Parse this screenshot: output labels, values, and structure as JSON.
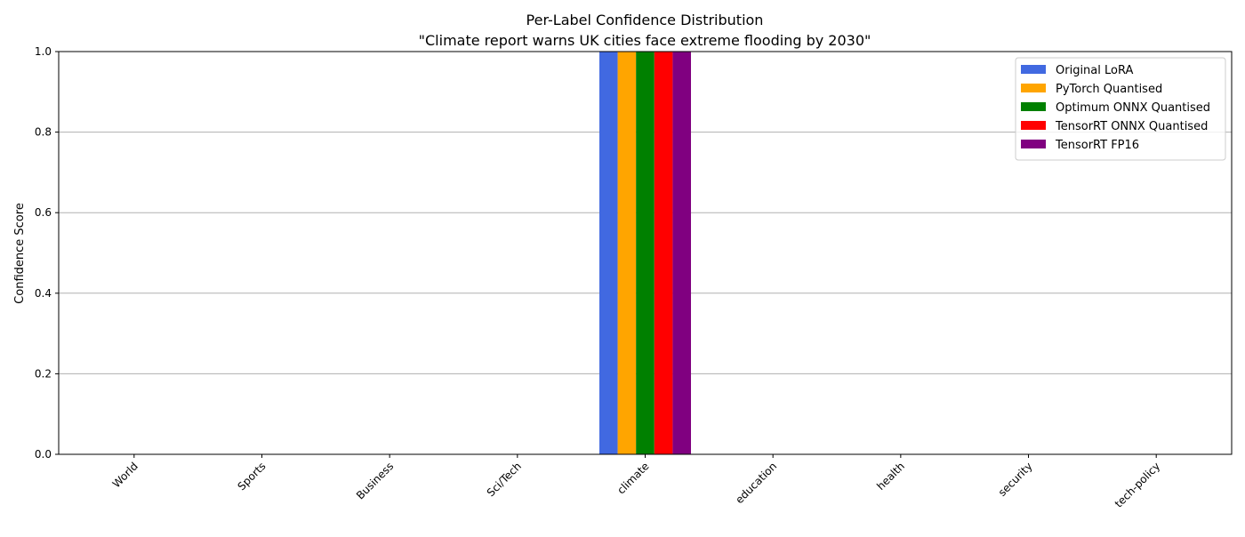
{
  "chart_data": {
    "type": "bar",
    "title": "Per-Label Confidence Distribution",
    "subtitle": "\"Climate report warns UK cities face extreme flooding by 2030\"",
    "xlabel": "",
    "ylabel": "Confidence Score",
    "ylim": [
      0,
      1
    ],
    "yticks": [
      "0.0",
      "0.2",
      "0.4",
      "0.6",
      "0.8",
      "1.0"
    ],
    "ytick_values": [
      0,
      0.2,
      0.4,
      0.6,
      0.8,
      1.0
    ],
    "grid": "y",
    "legend_position": "top-right",
    "categories": [
      "World",
      "Sports",
      "Business",
      "Sci/Tech",
      "climate",
      "education",
      "health",
      "security",
      "tech-policy"
    ],
    "series": [
      {
        "name": "Original LoRA",
        "color": "#4169E1",
        "values": [
          0,
          0,
          0,
          0,
          1.0,
          0,
          0,
          0,
          0
        ]
      },
      {
        "name": "PyTorch Quantised",
        "color": "#FFA500",
        "values": [
          0,
          0,
          0,
          0,
          1.0,
          0,
          0,
          0,
          0
        ]
      },
      {
        "name": "Optimum ONNX Quantised",
        "color": "#008000",
        "values": [
          0,
          0,
          0,
          0,
          1.0,
          0,
          0,
          0,
          0
        ]
      },
      {
        "name": "TensorRT ONNX Quantised",
        "color": "#FF0000",
        "values": [
          0,
          0,
          0,
          0,
          1.0,
          0,
          0,
          0,
          0
        ]
      },
      {
        "name": "TensorRT FP16",
        "color": "#800080",
        "values": [
          0,
          0,
          0,
          0,
          1.0,
          0,
          0,
          0,
          0
        ]
      }
    ]
  }
}
